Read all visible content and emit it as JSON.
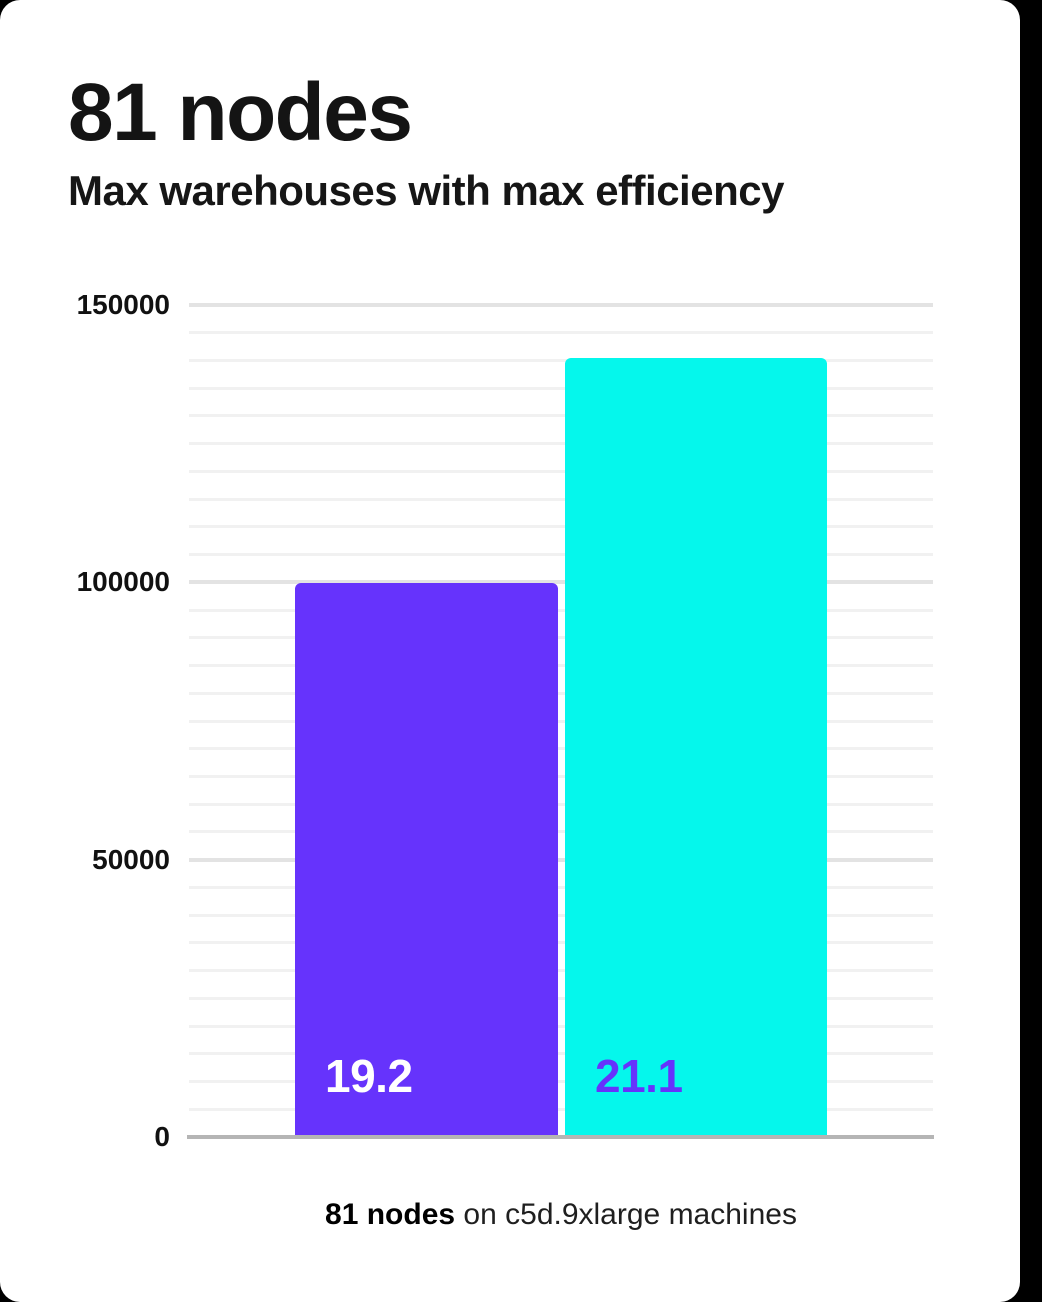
{
  "header": {
    "title": "81 nodes",
    "subtitle": "Max warehouses with max efficiency"
  },
  "caption": {
    "bold": "81 nodes",
    "rest": " on c5d.9xlarge machines"
  },
  "colors": {
    "purple": "#6633fc",
    "cyan": "#05f7ec",
    "grid_minor": "#f1f1f1",
    "grid_major": "#e3e3e3",
    "axis": "#b5b5b5"
  },
  "chart_data": {
    "type": "bar",
    "title": "81 nodes",
    "subtitle": "Max warehouses with max efficiency",
    "caption": "81 nodes on c5d.9xlarge machines",
    "categories": [
      "19.2",
      "21.1"
    ],
    "series": [
      {
        "name": "19.2",
        "value": 99500,
        "bar_color": "#6633fc",
        "label_color": "#ffffff"
      },
      {
        "name": "21.1",
        "value": 140000,
        "bar_color": "#05f7ec",
        "label_color": "#6633fc"
      }
    ],
    "xlabel": "",
    "ylabel": "",
    "ylim": [
      0,
      150000
    ],
    "yticks": [
      150000,
      100000,
      50000,
      0
    ],
    "ytick_labels": [
      "150000",
      "100000",
      "50000",
      "0"
    ],
    "grid": {
      "minor_step": 5000,
      "major_step": 50000,
      "visible": true
    },
    "legend": "none"
  }
}
